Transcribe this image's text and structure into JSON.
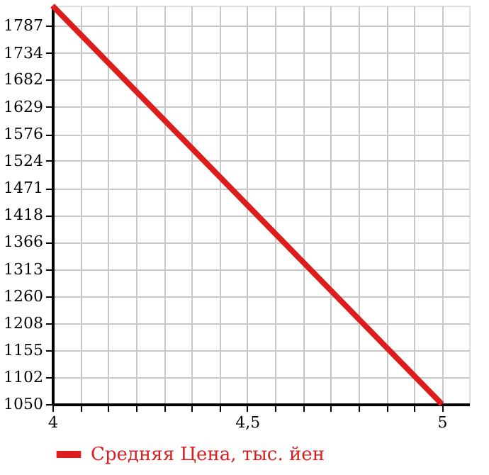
{
  "chart_data": {
    "type": "line",
    "x": [
      4,
      5
    ],
    "series": [
      {
        "name": "Средняя Цена, тыс. йен",
        "color": "#dd1c1c",
        "values": [
          1826,
          1050
        ]
      }
    ],
    "xlim": [
      4,
      5.07
    ],
    "xticks": [
      {
        "value": 4,
        "label": "4"
      },
      {
        "value": 4.0714,
        "label": null
      },
      {
        "value": 4.1429,
        "label": null
      },
      {
        "value": 4.2143,
        "label": null
      },
      {
        "value": 4.2857,
        "label": null
      },
      {
        "value": 4.3571,
        "label": null
      },
      {
        "value": 4.4286,
        "label": null
      },
      {
        "value": 4.5,
        "label": "4,5"
      },
      {
        "value": 4.5714,
        "label": null
      },
      {
        "value": 4.6429,
        "label": null
      },
      {
        "value": 4.7143,
        "label": null
      },
      {
        "value": 4.7857,
        "label": null
      },
      {
        "value": 4.8571,
        "label": null
      },
      {
        "value": 4.9286,
        "label": null
      },
      {
        "value": 5,
        "label": "5"
      }
    ],
    "ylim": [
      1050,
      1826
    ],
    "yticks": [
      1050,
      1102,
      1155,
      1208,
      1260,
      1313,
      1366,
      1418,
      1471,
      1524,
      1576,
      1629,
      1682,
      1734,
      1787
    ],
    "grid": true,
    "legend": "bottom",
    "marker": "none",
    "line_style": "solid"
  }
}
